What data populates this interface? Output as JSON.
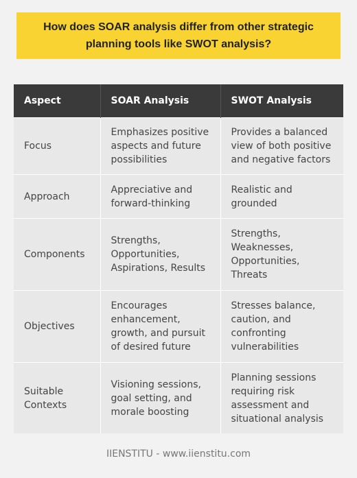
{
  "title": "How does SOAR analysis differ from other strategic planning tools like SWOT analysis?",
  "table": {
    "headers": [
      "Aspect",
      "SOAR Analysis",
      "SWOT Analysis"
    ],
    "rows": [
      [
        "Focus",
        "Emphasizes positive aspects and future possibilities",
        "Provides a balanced view of both positive and negative factors"
      ],
      [
        "Approach",
        "Appreciative and forward-thinking",
        "Realistic and grounded"
      ],
      [
        "Components",
        "Strengths, Opportunities, Aspirations, Results",
        "Strengths, Weaknesses, Opportunities, Threats"
      ],
      [
        "Objectives",
        "Encourages enhancement, growth, and pursuit of desired future",
        "Stresses balance, caution, and confronting vulnerabilities"
      ],
      [
        "Suitable Contexts",
        "Visioning sessions, goal setting, and morale boosting",
        "Planning sessions requiring risk assessment and situational analysis"
      ]
    ]
  },
  "footer": "IIENSTITU - www.iienstitu.com",
  "colors": {
    "title_background": "#f8d332",
    "header_background": "#3a3a3a",
    "cell_background": "#e8e8e8",
    "page_background": "#f2f2f2"
  }
}
